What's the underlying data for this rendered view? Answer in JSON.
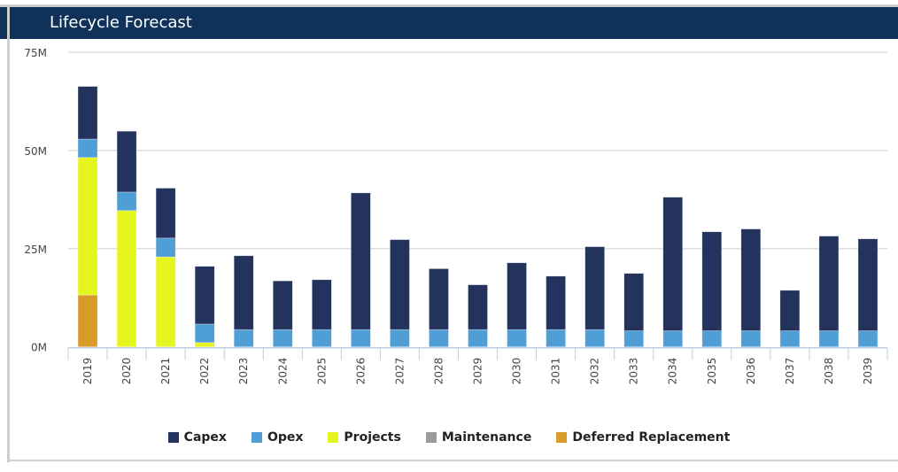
{
  "header": {
    "title": "Lifecycle Forecast"
  },
  "chart_data": {
    "type": "bar",
    "stacked": true,
    "title": "",
    "xlabel": "",
    "ylabel": "",
    "ylim": [
      0,
      75
    ],
    "y_unit": "M",
    "yticks": [
      "0M",
      "25M",
      "50M",
      "75M"
    ],
    "ytick_values": [
      0,
      25,
      50,
      75
    ],
    "grid": true,
    "legend_position": "bottom",
    "categories": [
      "2019",
      "2020",
      "2021",
      "2022",
      "2023",
      "2024",
      "2025",
      "2026",
      "2027",
      "2028",
      "2029",
      "2030",
      "2031",
      "2032",
      "2033",
      "2034",
      "2035",
      "2036",
      "2037",
      "2038",
      "2039"
    ],
    "series": [
      {
        "name": "Deferred Replacement",
        "color": "#d99b28",
        "values": [
          13.2,
          0,
          0,
          0,
          0,
          0,
          0,
          0,
          0,
          0,
          0,
          0,
          0,
          0,
          0,
          0,
          0,
          0,
          0,
          0,
          0
        ]
      },
      {
        "name": "Maintenance",
        "color": "#9b9b9b",
        "values": [
          0,
          0,
          0,
          0,
          0,
          0,
          0,
          0,
          0,
          0,
          0,
          0,
          0,
          0,
          0,
          0,
          0,
          0,
          0,
          0,
          0
        ]
      },
      {
        "name": "Projects",
        "color": "#e5f51d",
        "values": [
          35.0,
          34.7,
          22.9,
          1.1,
          0,
          0,
          0,
          0,
          0,
          0,
          0,
          0,
          0,
          0,
          0,
          0,
          0,
          0,
          0,
          0,
          0
        ]
      },
      {
        "name": "Opex",
        "color": "#4f9fd6",
        "values": [
          4.7,
          4.7,
          4.8,
          4.7,
          4.4,
          4.4,
          4.4,
          4.4,
          4.4,
          4.4,
          4.4,
          4.4,
          4.4,
          4.4,
          4.1,
          4.1,
          4.1,
          4.1,
          4.1,
          4.1,
          4.1
        ]
      },
      {
        "name": "Capex",
        "color": "#24325e",
        "values": [
          13.4,
          15.5,
          12.7,
          14.7,
          18.8,
          12.4,
          12.7,
          34.8,
          22.9,
          15.5,
          11.4,
          17.0,
          13.6,
          21.1,
          14.6,
          34.0,
          25.2,
          25.9,
          10.3,
          24.1,
          23.4
        ]
      }
    ],
    "legend_order": [
      "Capex",
      "Opex",
      "Projects",
      "Maintenance",
      "Deferred Replacement"
    ]
  }
}
